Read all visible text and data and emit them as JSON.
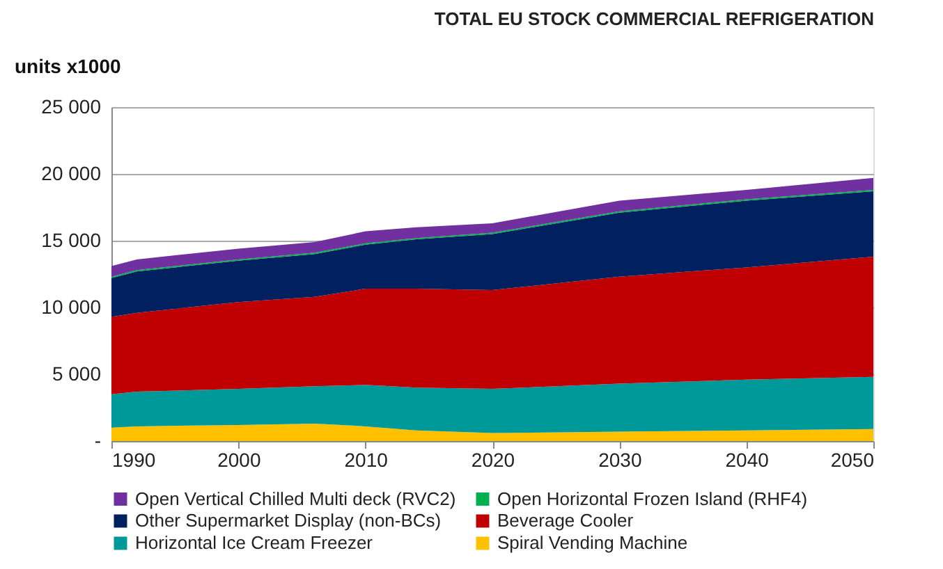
{
  "chart_data": {
    "type": "area",
    "stacked": true,
    "title": "TOTAL EU STOCK COMMERCIAL REFRIGERATION",
    "ylabel": "units x1000",
    "x": [
      1990,
      1992,
      2000,
      2006,
      2010,
      2014,
      2020,
      2030,
      2040,
      2050
    ],
    "xlim": [
      1990,
      2050
    ],
    "xticks": [
      1990,
      2000,
      2010,
      2020,
      2030,
      2040,
      2050
    ],
    "ylim": [
      0,
      25000
    ],
    "yticks": [
      {
        "value": 0,
        "label": "-"
      },
      {
        "value": 5000,
        "label": "5 000"
      },
      {
        "value": 10000,
        "label": "10 000"
      },
      {
        "value": 15000,
        "label": "15 000"
      },
      {
        "value": 20000,
        "label": "20 000"
      },
      {
        "value": 25000,
        "label": "25 000"
      }
    ],
    "grid": "y",
    "legend": "bottom",
    "series": [
      {
        "name": "Spiral Vending Machine",
        "color": "#ffc000",
        "values": [
          1000,
          1100,
          1200,
          1300,
          1100,
          800,
          600,
          700,
          800,
          900
        ]
      },
      {
        "name": "Horizontal Ice Cream Freezer",
        "color": "#009999",
        "values": [
          2500,
          2600,
          2700,
          2800,
          3100,
          3200,
          3300,
          3600,
          3800,
          3900
        ]
      },
      {
        "name": "Beverage Cooler",
        "color": "#c00000",
        "values": [
          5800,
          5900,
          6500,
          6700,
          7200,
          7400,
          7400,
          8000,
          8400,
          9000
        ]
      },
      {
        "name": "Other Supermarket Display (non-BCs)",
        "color": "#002060",
        "values": [
          2900,
          3100,
          3100,
          3200,
          3300,
          3700,
          4200,
          4800,
          5000,
          4900
        ]
      },
      {
        "name": "Open Horizontal Frozen Island (RHF4)",
        "color": "#00b050",
        "values": [
          100,
          100,
          100,
          100,
          100,
          100,
          100,
          100,
          100,
          100
        ]
      },
      {
        "name": "Open Vertical Chilled Multi deck (RVC2)",
        "color": "#7030a0",
        "values": [
          800,
          800,
          800,
          800,
          900,
          800,
          700,
          800,
          700,
          900
        ]
      }
    ]
  }
}
